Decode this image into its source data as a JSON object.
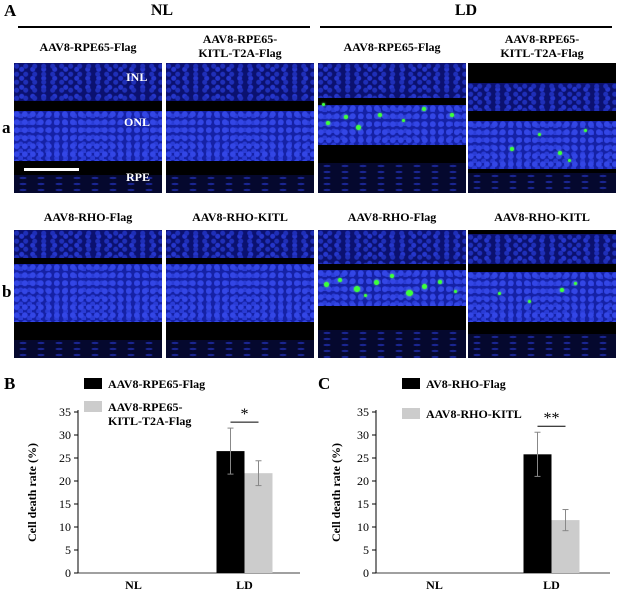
{
  "panel_A": {
    "letter": "A",
    "group_nl": "NL",
    "group_ld": "LD",
    "row_a_letter": "a",
    "row_b_letter": "b",
    "row_a_columns": [
      "AAV8-RPE65-Flag",
      "AAV8-RPE65-\nKITL-T2A-Flag",
      "AAV8-RPE65-Flag",
      "AAV8-RPE65-\nKITL-T2A-Flag"
    ],
    "row_b_columns": [
      "AAV8-RHO-Flag",
      "AAV8-RHO-KITL",
      "AAV8-RHO-Flag",
      "AAV8-RHO-KITL"
    ],
    "layer_labels": {
      "inl": "INL",
      "onl": "ONL",
      "rpe": "RPE"
    },
    "colors": {
      "nucleus_blue": "#1a28c0",
      "tunel_green": "#3cff3c",
      "background": "#000000"
    }
  },
  "panel_B": {
    "letter": "B",
    "significance": "*",
    "chart_data": {
      "type": "bar",
      "categories": [
        "NL",
        "LD"
      ],
      "series": [
        {
          "name": "AAV8-RPE65-Flag",
          "color": "#000000",
          "values": [
            0,
            26.5
          ],
          "errors": [
            0,
            5
          ]
        },
        {
          "name": "AAV8-RPE65-\nKITL-T2A-Flag",
          "color": "#cccccc",
          "values": [
            0,
            21.7
          ],
          "errors": [
            0,
            2.7
          ]
        }
      ],
      "ylabel": "Cell death rate (%)",
      "ylim": [
        0,
        35
      ],
      "yticks": [
        0,
        5,
        10,
        15,
        20,
        25,
        30,
        35
      ]
    }
  },
  "panel_C": {
    "letter": "C",
    "significance": "**",
    "chart_data": {
      "type": "bar",
      "categories": [
        "NL",
        "LD"
      ],
      "series": [
        {
          "name": "AV8-RHO-Flag",
          "color": "#000000",
          "values": [
            0,
            25.8
          ],
          "errors": [
            0,
            4.8
          ]
        },
        {
          "name": "AAV8-RHO-KITL",
          "color": "#cccccc",
          "values": [
            0,
            11.5
          ],
          "errors": [
            0,
            2.3
          ]
        }
      ],
      "ylabel": "Cell death rate (%)",
      "ylim": [
        0,
        35
      ],
      "yticks": [
        0,
        5,
        10,
        15,
        20,
        25,
        30,
        35
      ]
    }
  }
}
